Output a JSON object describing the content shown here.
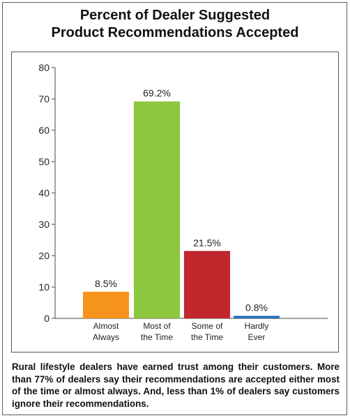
{
  "title_line1": "Percent of Dealer Suggested",
  "title_line2": "Product Recommendations Accepted",
  "caption": "Rural lifestyle dealers have earned trust among their customers. More than 77% of dealers say their recommendations are accepted either most of the time or almost always. And, less than 1% of dealers say customers ignore their recommendations.",
  "chart_data": {
    "type": "bar",
    "categories": [
      [
        "Almost",
        "Always"
      ],
      [
        "Most of",
        "the Time"
      ],
      [
        "Some of",
        "the Time"
      ],
      [
        "Hardly",
        "Ever"
      ]
    ],
    "values": [
      8.5,
      69.2,
      21.5,
      0.8
    ],
    "data_labels": [
      "8.5%",
      "69.2%",
      "21.5%",
      "0.8%"
    ],
    "colors": [
      "#f7941d",
      "#8dc63f",
      "#c1272d",
      "#1f6eb5"
    ],
    "ylim": [
      0,
      80
    ],
    "yticks": [
      0,
      10,
      20,
      30,
      40,
      50,
      60,
      70,
      80
    ],
    "grid": false,
    "legend": "none"
  }
}
